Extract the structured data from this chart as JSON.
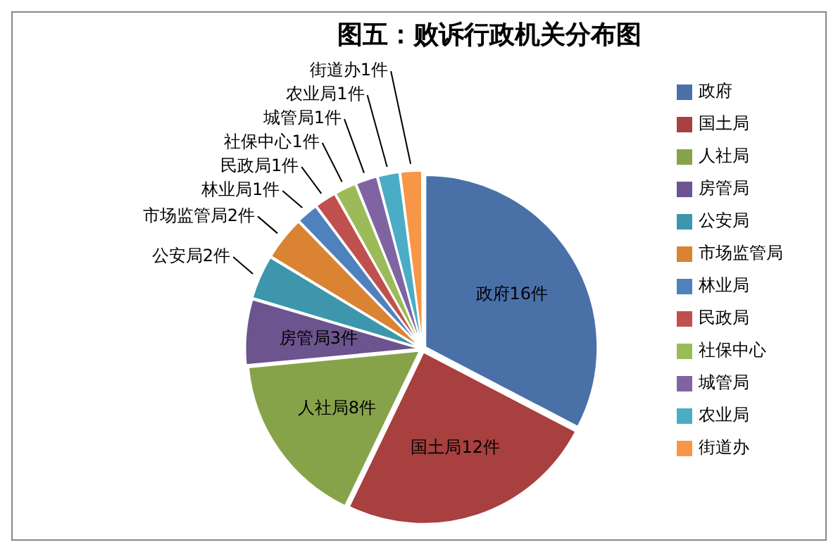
{
  "chart_data": {
    "type": "pie",
    "title": "图五：败诉行政机关分布图",
    "categories": [
      "政府",
      "国土局",
      "人社局",
      "房管局",
      "公安局",
      "市场监管局",
      "林业局",
      "民政局",
      "社保中心",
      "城管局",
      "农业局",
      "街道办"
    ],
    "values": [
      16,
      12,
      8,
      3,
      2,
      2,
      1,
      1,
      1,
      1,
      1,
      1
    ],
    "value_labels": [
      "政府16件",
      "国土局12件",
      "人社局8件",
      "房管局3件",
      "公安局2件",
      "市场监管局2件",
      "林业局1件",
      "民政局1件",
      "社保中心1件",
      "城管局1件",
      "农业局1件",
      "街道办1件"
    ],
    "colors": [
      "#4a70a8",
      "#a7403e",
      "#87a34a",
      "#6c548f",
      "#3d96ab",
      "#d98333",
      "#4f81bd",
      "#c0504d",
      "#9bbb59",
      "#8064a2",
      "#4bacc6",
      "#f79646"
    ],
    "legend": "right"
  }
}
